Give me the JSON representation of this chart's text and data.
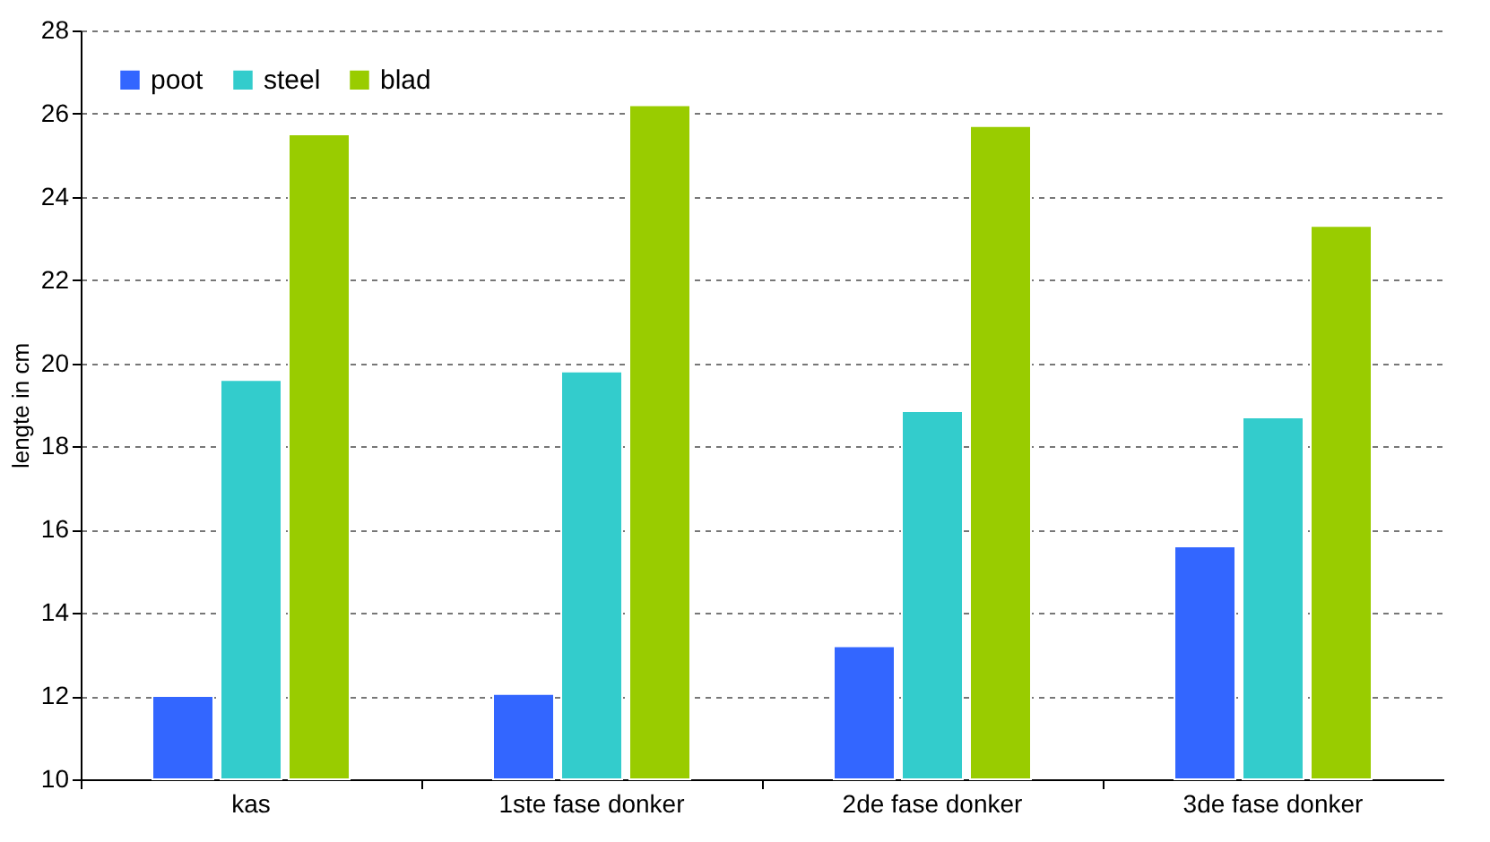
{
  "chart_data": {
    "type": "bar",
    "ylabel": "lengte in cm",
    "categories": [
      "kas",
      "1ste fase donker",
      "2de fase donker",
      "3de fase donker"
    ],
    "series": [
      {
        "name": "poot",
        "color": "#3366ff",
        "values": [
          12.0,
          12.05,
          13.2,
          15.6
        ]
      },
      {
        "name": "steel",
        "color": "#33cccc",
        "values": [
          19.6,
          19.8,
          18.85,
          18.7
        ]
      },
      {
        "name": "blad",
        "color": "#99cc00",
        "values": [
          25.5,
          26.2,
          25.7,
          23.3
        ]
      }
    ],
    "ylim": [
      10,
      28
    ],
    "yticks": [
      10,
      12,
      14,
      16,
      18,
      20,
      22,
      24,
      26,
      28
    ],
    "grid": "y",
    "legend": "top left"
  }
}
